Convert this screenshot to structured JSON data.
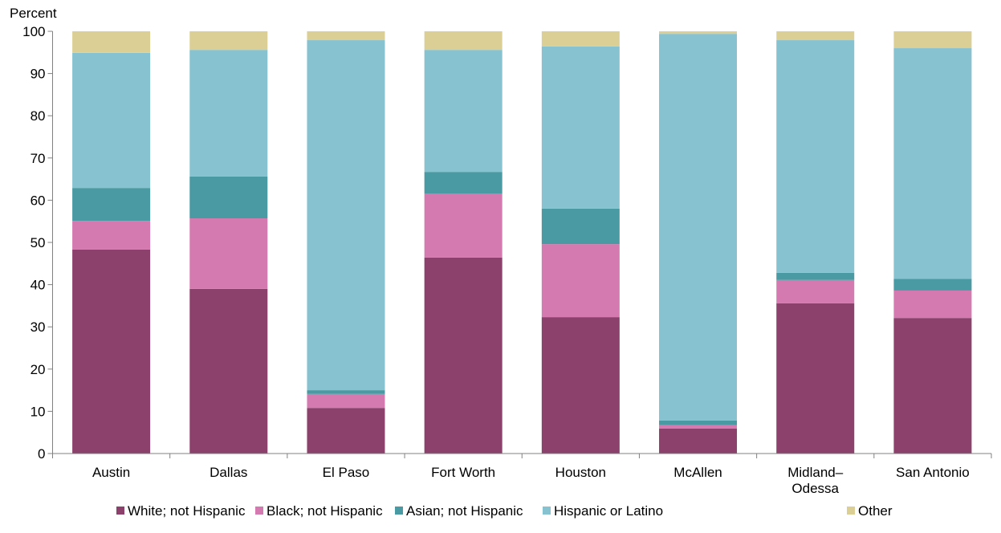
{
  "chart_data": {
    "type": "bar",
    "stacked": true,
    "title": "",
    "xlabel": "",
    "ylabel": "Percent",
    "ylim": [
      0,
      100
    ],
    "yticks": [
      0,
      10,
      20,
      30,
      40,
      50,
      60,
      70,
      80,
      90,
      100
    ],
    "grid": false,
    "legend_position": "bottom",
    "categories": [
      "Austin",
      "Dallas",
      "El Paso",
      "Fort Worth",
      "Houston",
      "McAllen",
      "Midland–Odessa",
      "San Antonio"
    ],
    "series": [
      {
        "name": "White; not Hispanic",
        "color": "#8B416B",
        "values": [
          48.3,
          39.0,
          10.8,
          46.4,
          32.3,
          5.9,
          35.6,
          32.1
        ]
      },
      {
        "name": "Black; not Hispanic",
        "color": "#D57AB0",
        "values": [
          6.8,
          16.7,
          3.3,
          15.2,
          17.3,
          0.8,
          5.5,
          6.5
        ]
      },
      {
        "name": "Asian; not Hispanic",
        "color": "#4A9AA3",
        "values": [
          7.8,
          9.9,
          0.9,
          5.1,
          8.4,
          1.1,
          1.7,
          2.8
        ]
      },
      {
        "name": "Hispanic or Latino",
        "color": "#87C2D0",
        "values": [
          32.0,
          30.0,
          82.9,
          28.9,
          38.4,
          91.6,
          55.1,
          54.6
        ]
      },
      {
        "name": "Other",
        "color": "#DCCF95",
        "values": [
          5.1,
          4.4,
          2.1,
          4.4,
          3.6,
          0.6,
          2.1,
          4.0
        ]
      }
    ]
  }
}
